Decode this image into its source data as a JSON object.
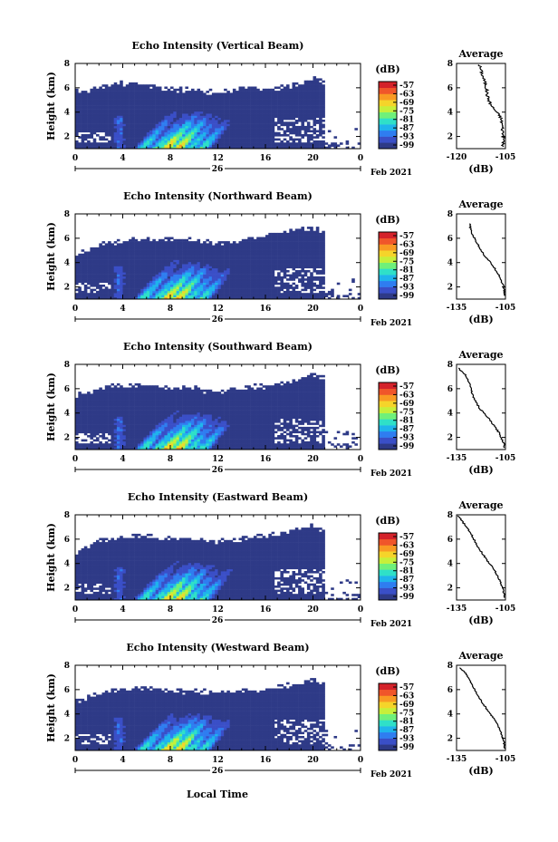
{
  "figure": {
    "xlabel": "Local Time",
    "ylabel": "Height (km)",
    "unit": "(dB)",
    "date_label": "Feb 2021",
    "day_label": "26",
    "avg_title": "Average",
    "avg_xlabel": "(dB)"
  },
  "colorbar": {
    "ticks": [
      "-57",
      "-63",
      "-69",
      "-75",
      "-81",
      "-87",
      "-93",
      "-99"
    ],
    "colors": [
      "#2e3a87",
      "#3a4fc7",
      "#2f7df0",
      "#1fb4ec",
      "#2fe0c8",
      "#6ff07a",
      "#c7ef3a",
      "#f5d42a",
      "#f99a23",
      "#f0562a",
      "#d4222a"
    ]
  },
  "chart_data": [
    {
      "type": "heatmap",
      "title": "Echo Intensity (Vertical Beam)",
      "x_range": [
        0,
        24
      ],
      "x_ticks": [
        "0",
        "4",
        "8",
        "12",
        "16",
        "20",
        "0"
      ],
      "y_range": [
        1,
        8
      ],
      "y_ticks": [
        "2",
        "4",
        "6",
        "8"
      ],
      "echo_top_km": [
        [
          0,
          5.7
        ],
        [
          2,
          6.0
        ],
        [
          4,
          6.4
        ],
        [
          6,
          6.2
        ],
        [
          8,
          5.8
        ],
        [
          10,
          5.9
        ],
        [
          12,
          5.5
        ],
        [
          14,
          5.9
        ],
        [
          16,
          6.0
        ],
        [
          18,
          6.1
        ],
        [
          20,
          6.7
        ],
        [
          21,
          6.5
        ]
      ],
      "inset": {
        "title": "Average",
        "x_range": [
          -120,
          -105
        ],
        "x_ticks": [
          "-120",
          "-105"
        ],
        "y_ticks": [
          "2",
          "4",
          "6",
          "8"
        ],
        "profile": [
          [
            -113,
            7.9
          ],
          [
            -112,
            7.0
          ],
          [
            -111,
            6.2
          ],
          [
            -110.5,
            5.3
          ],
          [
            -109.5,
            4.6
          ],
          [
            -108,
            4.1
          ],
          [
            -106.5,
            3.6
          ],
          [
            -106,
            3.0
          ],
          [
            -105.8,
            2.4
          ],
          [
            -105.5,
            1.6
          ],
          [
            -106,
            1.1
          ]
        ]
      }
    },
    {
      "type": "heatmap",
      "title": "Echo Intensity (Northward Beam)",
      "x_range": [
        0,
        24
      ],
      "x_ticks": [
        "0",
        "4",
        "8",
        "12",
        "16",
        "20",
        "0"
      ],
      "y_range": [
        1,
        8
      ],
      "y_ticks": [
        "2",
        "4",
        "6",
        "8"
      ],
      "echo_top_km": [
        [
          0,
          4.6
        ],
        [
          2,
          5.5
        ],
        [
          4,
          5.7
        ],
        [
          6,
          6.0
        ],
        [
          8,
          5.9
        ],
        [
          10,
          5.8
        ],
        [
          12,
          5.6
        ],
        [
          14,
          5.8
        ],
        [
          16,
          6.2
        ],
        [
          18,
          6.6
        ],
        [
          20,
          6.9
        ],
        [
          21,
          6.3
        ]
      ],
      "inset": {
        "title": "Average",
        "x_range": [
          -135,
          -105
        ],
        "x_ticks": [
          "-135",
          "-105"
        ],
        "y_ticks": [
          "2",
          "4",
          "6",
          "8"
        ],
        "profile": [
          [
            -127,
            7.2
          ],
          [
            -126,
            6.5
          ],
          [
            -122,
            5.5
          ],
          [
            -118,
            4.6
          ],
          [
            -113,
            3.8
          ],
          [
            -109,
            3.0
          ],
          [
            -106,
            2.0
          ],
          [
            -105.5,
            1.2
          ]
        ]
      }
    },
    {
      "type": "heatmap",
      "title": "Echo Intensity (Southward Beam)",
      "x_range": [
        0,
        24
      ],
      "x_ticks": [
        "0",
        "4",
        "8",
        "12",
        "16",
        "20",
        "0"
      ],
      "y_range": [
        1,
        8
      ],
      "y_ticks": [
        "2",
        "4",
        "6",
        "8"
      ],
      "echo_top_km": [
        [
          0,
          5.4
        ],
        [
          2,
          6.1
        ],
        [
          4,
          6.2
        ],
        [
          6,
          6.3
        ],
        [
          8,
          6.1
        ],
        [
          10,
          6.0
        ],
        [
          12,
          5.7
        ],
        [
          14,
          6.1
        ],
        [
          16,
          6.2
        ],
        [
          18,
          6.5
        ],
        [
          20,
          7.2
        ],
        [
          21,
          6.8
        ]
      ],
      "inset": {
        "title": "Average",
        "x_range": [
          -135,
          -105
        ],
        "x_ticks": [
          "-135",
          "-105"
        ],
        "y_ticks": [
          "2",
          "4",
          "6",
          "8"
        ],
        "profile": [
          [
            -134,
            7.7
          ],
          [
            -130,
            7.2
          ],
          [
            -127,
            6.5
          ],
          [
            -125,
            5.4
          ],
          [
            -121,
            4.4
          ],
          [
            -115,
            3.5
          ],
          [
            -109,
            2.4
          ],
          [
            -106,
            1.5
          ],
          [
            -105.5,
            1.1
          ]
        ]
      }
    },
    {
      "type": "heatmap",
      "title": "Echo Intensity (Eastward Beam)",
      "x_range": [
        0,
        24
      ],
      "x_ticks": [
        "0",
        "4",
        "8",
        "12",
        "16",
        "20",
        "0"
      ],
      "y_range": [
        1,
        8
      ],
      "y_ticks": [
        "2",
        "4",
        "6",
        "8"
      ],
      "echo_top_km": [
        [
          0,
          4.8
        ],
        [
          2,
          5.9
        ],
        [
          4,
          6.1
        ],
        [
          6,
          6.3
        ],
        [
          8,
          6.0
        ],
        [
          10,
          6.1
        ],
        [
          12,
          5.8
        ],
        [
          14,
          6.0
        ],
        [
          16,
          6.3
        ],
        [
          18,
          6.6
        ],
        [
          20,
          7.0
        ],
        [
          21,
          6.7
        ]
      ],
      "inset": {
        "title": "Average",
        "x_range": [
          -135,
          -105
        ],
        "x_ticks": [
          "-135",
          "-105"
        ],
        "y_ticks": [
          "2",
          "4",
          "6",
          "8"
        ],
        "profile": [
          [
            -134,
            7.9
          ],
          [
            -130,
            7.2
          ],
          [
            -126,
            6.4
          ],
          [
            -122,
            5.4
          ],
          [
            -117,
            4.4
          ],
          [
            -112,
            3.5
          ],
          [
            -108,
            2.5
          ],
          [
            -106,
            1.6
          ],
          [
            -105.5,
            1.1
          ]
        ]
      }
    },
    {
      "type": "heatmap",
      "title": "Echo Intensity (Westward Beam)",
      "x_range": [
        0,
        24
      ],
      "x_ticks": [
        "0",
        "4",
        "8",
        "12",
        "16",
        "20",
        "0"
      ],
      "y_range": [
        1,
        8
      ],
      "y_ticks": [
        "2",
        "4",
        "6",
        "8"
      ],
      "echo_top_km": [
        [
          0,
          5.0
        ],
        [
          2,
          5.7
        ],
        [
          4,
          6.1
        ],
        [
          6,
          6.1
        ],
        [
          8,
          5.9
        ],
        [
          10,
          5.9
        ],
        [
          12,
          5.7
        ],
        [
          14,
          5.9
        ],
        [
          16,
          6.0
        ],
        [
          18,
          6.3
        ],
        [
          20,
          6.8
        ],
        [
          21,
          6.5
        ]
      ],
      "inset": {
        "title": "Average",
        "x_range": [
          -135,
          -105
        ],
        "x_ticks": [
          "-135",
          "-105"
        ],
        "y_ticks": [
          "2",
          "4",
          "6",
          "8"
        ],
        "profile": [
          [
            -133,
            7.8
          ],
          [
            -129,
            7.3
          ],
          [
            -126,
            6.5
          ],
          [
            -122,
            5.5
          ],
          [
            -117,
            4.5
          ],
          [
            -112,
            3.6
          ],
          [
            -108,
            2.6
          ],
          [
            -106,
            1.7
          ],
          [
            -105.5,
            1.1
          ]
        ]
      }
    }
  ]
}
